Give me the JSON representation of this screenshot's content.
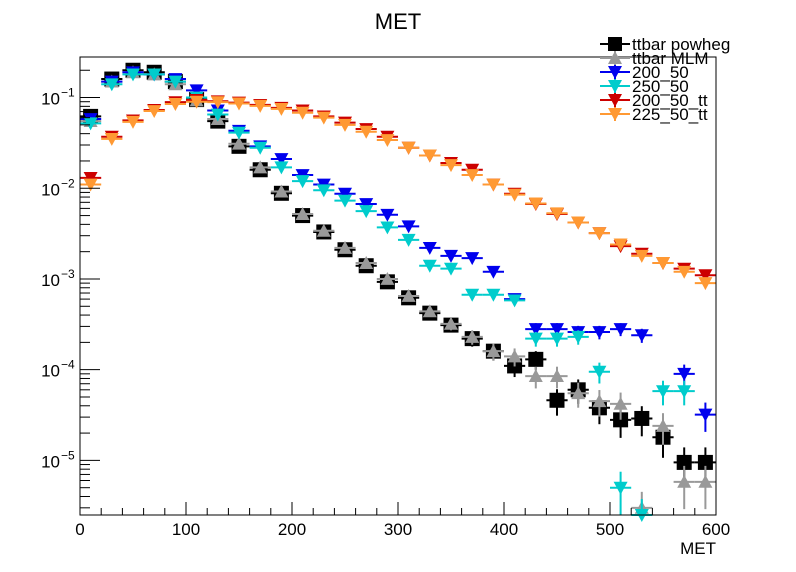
{
  "chart_data": {
    "type": "scatter",
    "title": "MET",
    "xlabel": "MET",
    "ylabel": "",
    "xlim": [
      0,
      600
    ],
    "ylim": [
      2.5e-06,
      0.28
    ],
    "y_scale": "log",
    "x_ticks": [
      "0",
      "100",
      "200",
      "300",
      "400",
      "500",
      "600"
    ],
    "y_ticks": [
      {
        "value": 0.1,
        "base": "10",
        "exp": "−1"
      },
      {
        "value": 0.01,
        "base": "10",
        "exp": "−2"
      },
      {
        "value": 0.001,
        "base": "10",
        "exp": "−3"
      },
      {
        "value": 0.0001,
        "base": "10",
        "exp": "−4"
      },
      {
        "value": 1e-05,
        "base": "10",
        "exp": "−5"
      }
    ],
    "grid": false,
    "legend_position": "top-right",
    "series": [
      {
        "name": "ttbar powheg",
        "marker": "square",
        "color": "#000000",
        "x": [
          10,
          30,
          50,
          70,
          90,
          110,
          130,
          150,
          170,
          190,
          210,
          230,
          250,
          270,
          290,
          310,
          330,
          350,
          370,
          390,
          410,
          430,
          450,
          470,
          490,
          510,
          530,
          550,
          570,
          590
        ],
        "y": [
          0.062,
          0.16,
          0.2,
          0.19,
          0.15,
          0.095,
          0.055,
          0.029,
          0.016,
          0.0088,
          0.005,
          0.0033,
          0.0021,
          0.0014,
          0.00093,
          0.00062,
          0.00042,
          0.00031,
          0.00022,
          0.00016,
          0.00011,
          0.00013,
          4.6e-05,
          6e-05,
          3.8e-05,
          2.8e-05,
          2.9e-05,
          1.8e-05,
          9.5e-06,
          9.5e-06
        ]
      },
      {
        "name": "ttbar MLM",
        "marker": "triangle-up",
        "color": "#999999",
        "x": [
          10,
          30,
          50,
          70,
          90,
          110,
          130,
          150,
          170,
          190,
          210,
          230,
          250,
          270,
          290,
          310,
          330,
          350,
          370,
          390,
          410,
          430,
          450,
          470,
          490,
          510,
          530,
          550,
          570,
          590
        ],
        "y": [
          0.055,
          0.15,
          0.19,
          0.18,
          0.14,
          0.093,
          0.058,
          0.031,
          0.017,
          0.0092,
          0.0052,
          0.0034,
          0.0022,
          0.0015,
          0.001,
          0.00065,
          0.00044,
          0.00032,
          0.00023,
          0.00016,
          0.00014,
          8.5e-05,
          8.5e-05,
          5.5e-05,
          4.5e-05,
          4.2e-05,
          3e-06,
          2.4e-05,
          5.8e-06,
          5.8e-06
        ]
      },
      {
        "name": "200_50",
        "marker": "triangle-down",
        "color": "#0000ee",
        "x": [
          10,
          30,
          50,
          70,
          90,
          110,
          130,
          150,
          170,
          190,
          210,
          230,
          250,
          270,
          290,
          310,
          330,
          350,
          370,
          390,
          410,
          430,
          450,
          470,
          490,
          510,
          530,
          570,
          590
        ],
        "y": [
          0.058,
          0.15,
          0.19,
          0.18,
          0.16,
          0.12,
          0.072,
          0.043,
          0.029,
          0.021,
          0.014,
          0.011,
          0.0087,
          0.0067,
          0.0051,
          0.0038,
          0.0022,
          0.0018,
          0.0017,
          0.0012,
          0.0006,
          0.00028,
          0.00028,
          0.00026,
          0.00026,
          0.00028,
          0.00024,
          9e-05,
          3.2e-05
        ]
      },
      {
        "name": "250_50",
        "marker": "triangle-down",
        "color": "#00cccc",
        "x": [
          10,
          30,
          50,
          70,
          90,
          110,
          130,
          150,
          170,
          190,
          210,
          230,
          250,
          270,
          290,
          310,
          330,
          350,
          370,
          390,
          410,
          430,
          450,
          470,
          490,
          510,
          530,
          550,
          570
        ],
        "y": [
          0.052,
          0.14,
          0.18,
          0.18,
          0.15,
          0.1,
          0.065,
          0.041,
          0.028,
          0.017,
          0.012,
          0.0095,
          0.0073,
          0.0056,
          0.0037,
          0.0027,
          0.0014,
          0.0013,
          0.00067,
          0.00067,
          0.00058,
          0.00022,
          0.00022,
          0.00023,
          9.5e-05,
          5e-06,
          2.5e-06,
          5.8e-05,
          5.8e-05
        ]
      },
      {
        "name": "200_50_tt",
        "marker": "triangle-down",
        "color": "#cc0000",
        "x": [
          10,
          30,
          50,
          70,
          90,
          110,
          130,
          150,
          170,
          190,
          210,
          230,
          250,
          270,
          290,
          310,
          330,
          350,
          370,
          390,
          410,
          430,
          450,
          470,
          490,
          510,
          530,
          550,
          570,
          590
        ],
        "y": [
          0.013,
          0.037,
          0.056,
          0.073,
          0.089,
          0.094,
          0.091,
          0.088,
          0.083,
          0.077,
          0.072,
          0.062,
          0.053,
          0.045,
          0.037,
          0.028,
          0.023,
          0.019,
          0.016,
          0.011,
          0.0087,
          0.0067,
          0.0052,
          0.0042,
          0.0032,
          0.0023,
          0.0019,
          0.0015,
          0.0013,
          0.0011
        ]
      },
      {
        "name": "225_50_tt",
        "marker": "triangle-down",
        "color": "#ff9933",
        "x": [
          10,
          30,
          50,
          70,
          90,
          110,
          130,
          150,
          170,
          190,
          210,
          230,
          250,
          270,
          290,
          310,
          330,
          350,
          370,
          390,
          410,
          430,
          450,
          470,
          490,
          510,
          530,
          550,
          570,
          590
        ],
        "y": [
          0.011,
          0.035,
          0.054,
          0.071,
          0.085,
          0.09,
          0.089,
          0.086,
          0.081,
          0.075,
          0.068,
          0.06,
          0.05,
          0.042,
          0.034,
          0.028,
          0.023,
          0.018,
          0.014,
          0.011,
          0.0085,
          0.0068,
          0.0053,
          0.0042,
          0.0032,
          0.0024,
          0.0018,
          0.0015,
          0.0012,
          0.0009
        ]
      }
    ]
  }
}
